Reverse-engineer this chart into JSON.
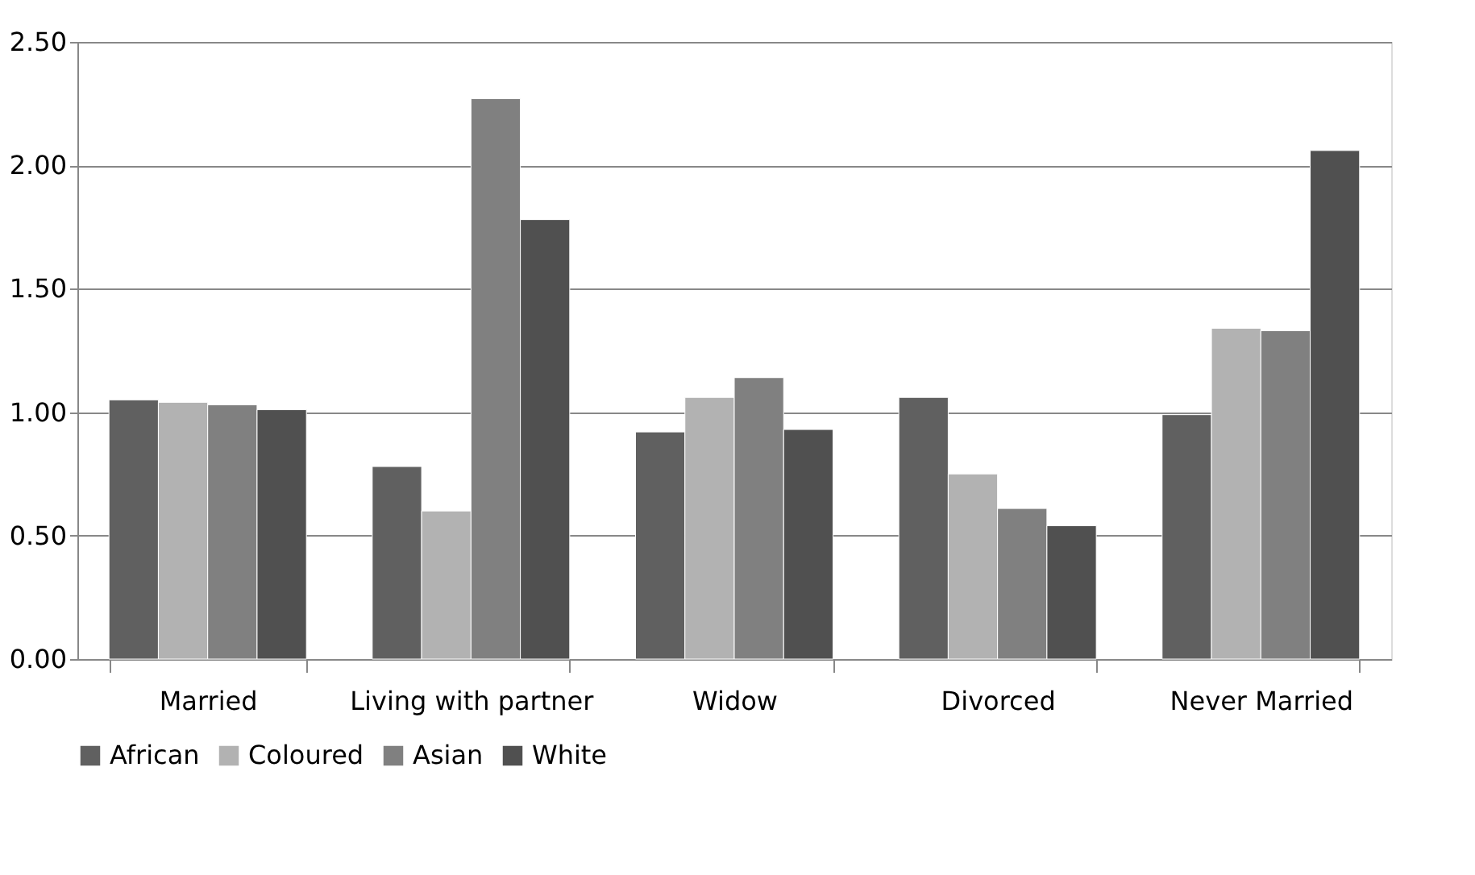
{
  "chart_data": {
    "type": "bar",
    "categories": [
      "Married",
      "Living with partner",
      "Widow",
      "Divorced",
      "Never Married"
    ],
    "series": [
      {
        "name": "African",
        "color": "#606060",
        "values": [
          1.05,
          0.78,
          0.92,
          1.06,
          0.99
        ]
      },
      {
        "name": "Coloured",
        "color": "#b2b2b2",
        "values": [
          1.04,
          0.6,
          1.06,
          0.75,
          1.34
        ]
      },
      {
        "name": "Asian",
        "color": "#808080",
        "values": [
          1.03,
          2.27,
          1.14,
          0.61,
          1.33
        ]
      },
      {
        "name": "White",
        "color": "#505050",
        "values": [
          1.01,
          1.78,
          0.93,
          0.54,
          2.06
        ]
      }
    ],
    "ylim": [
      0,
      2.5
    ],
    "yticks": [
      {
        "value": 0,
        "label": "0.00"
      },
      {
        "value": 0.5,
        "label": "0.50"
      },
      {
        "value": 1,
        "label": "1.00"
      },
      {
        "value": 1.5,
        "label": "1.50"
      },
      {
        "value": 2,
        "label": "2.00"
      },
      {
        "value": 2.5,
        "label": "2.50"
      }
    ],
    "grid": "y",
    "legend": "bottom"
  }
}
